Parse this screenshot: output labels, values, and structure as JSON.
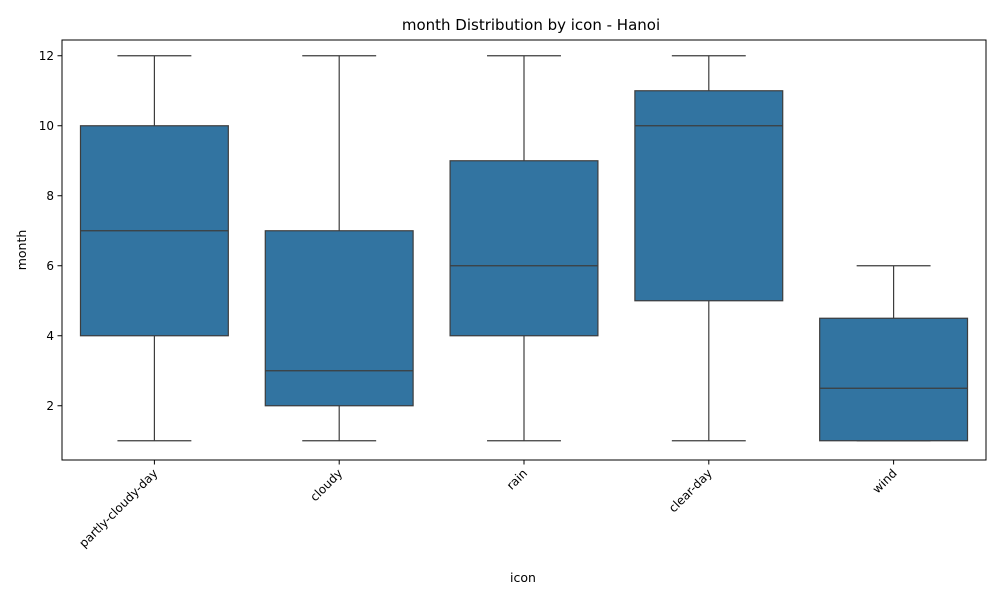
{
  "chart_data": {
    "type": "boxplot",
    "title": "month Distribution by icon - Hanoi",
    "xlabel": "icon",
    "ylabel": "month",
    "ylim": [
      0.45,
      12.45
    ],
    "yticks": [
      2,
      4,
      6,
      8,
      10,
      12
    ],
    "grid": false,
    "legend": "none",
    "box_color": "#3274a1",
    "line_color": "#3d3d3d",
    "categories": [
      "partly-cloudy-day",
      "cloudy",
      "rain",
      "clear-day",
      "wind"
    ],
    "boxes": [
      {
        "category": "partly-cloudy-day",
        "whisker_low": 1,
        "q1": 4,
        "median": 7,
        "q3": 10,
        "whisker_high": 12
      },
      {
        "category": "cloudy",
        "whisker_low": 1,
        "q1": 2,
        "median": 3,
        "q3": 7,
        "whisker_high": 12
      },
      {
        "category": "rain",
        "whisker_low": 1,
        "q1": 4,
        "median": 6,
        "q3": 9,
        "whisker_high": 12
      },
      {
        "category": "clear-day",
        "whisker_low": 1,
        "q1": 5,
        "median": 10,
        "q3": 11,
        "whisker_high": 12
      },
      {
        "category": "wind",
        "whisker_low": 1,
        "q1": 1,
        "median": 2.5,
        "q3": 4.5,
        "whisker_high": 6
      }
    ]
  }
}
